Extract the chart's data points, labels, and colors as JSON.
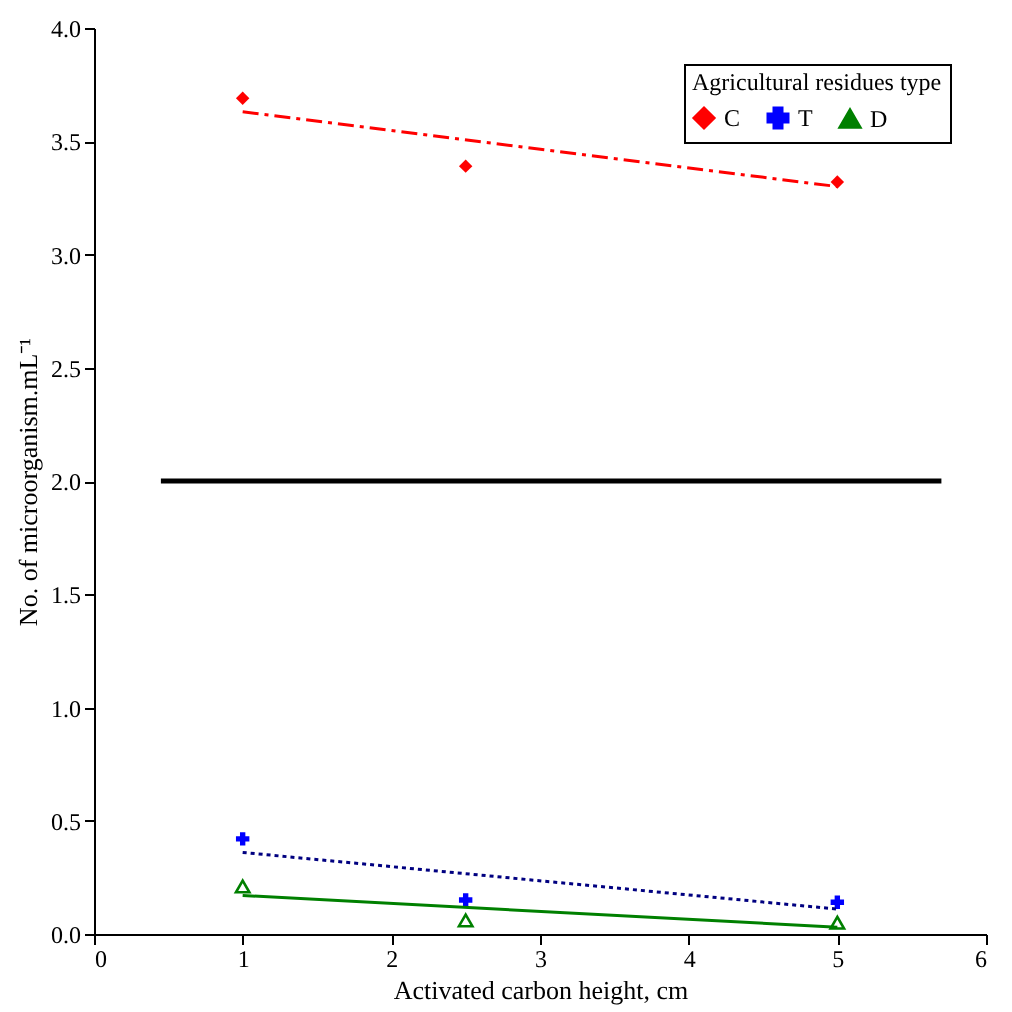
{
  "chart_data": {
    "type": "scatter",
    "xlabel": "Activated carbon height, cm",
    "ylabel": "No. of microorganism.mL⁻¹",
    "legend_title": "Agricultural residues type",
    "legend": "top right",
    "grid": false,
    "xlim": [
      0,
      6
    ],
    "xticks": [
      0,
      1,
      2,
      3,
      4,
      5,
      6
    ],
    "ylim": [
      0,
      4
    ],
    "yticks": [
      {
        "value": 0,
        "label": "0.0"
      },
      {
        "value": 0.5,
        "label": "0.5"
      },
      {
        "value": 1,
        "label": "1.0"
      },
      {
        "value": 1.5,
        "label": "1.5"
      },
      {
        "value": 2,
        "label": "2.0"
      },
      {
        "value": 2.5,
        "label": "2.5"
      },
      {
        "value": 3,
        "label": "3.0"
      },
      {
        "value": 3.5,
        "label": "3.5"
      },
      {
        "value": 4,
        "label": "4.0"
      }
    ],
    "series": [
      {
        "name": "C",
        "marker": "diamond",
        "color": "#ff0000",
        "x": [
          1,
          2.5,
          5
        ],
        "values": [
          3.69,
          3.39,
          3.32
        ]
      },
      {
        "name": "T",
        "marker": "cross",
        "color": "#0000ff",
        "x": [
          1,
          2.5,
          5
        ],
        "values": [
          0.42,
          0.15,
          0.14
        ]
      },
      {
        "name": "D",
        "marker": "triangle",
        "color": "#008000",
        "x": [
          1,
          2.5,
          5
        ],
        "values": [
          0.21,
          0.06,
          0.05
        ]
      },
      {
        "type": "line",
        "line_style": "dashed",
        "color": "#ff0000",
        "x": [
          1,
          5
        ],
        "values": [
          3.63,
          3.3
        ]
      },
      {
        "type": "line",
        "line_style": "dotted",
        "color": "#000080",
        "x": [
          1,
          5
        ],
        "values": [
          0.36,
          0.11
        ]
      },
      {
        "type": "line",
        "line_style": "solid",
        "color": "#008000",
        "x": [
          1,
          5
        ],
        "values": [
          0.17,
          0.03
        ]
      },
      {
        "type": "line",
        "line_style": "solid",
        "color": "#000000",
        "x": [
          0.45,
          5.7
        ],
        "values": [
          2.0,
          2.0
        ]
      }
    ]
  }
}
